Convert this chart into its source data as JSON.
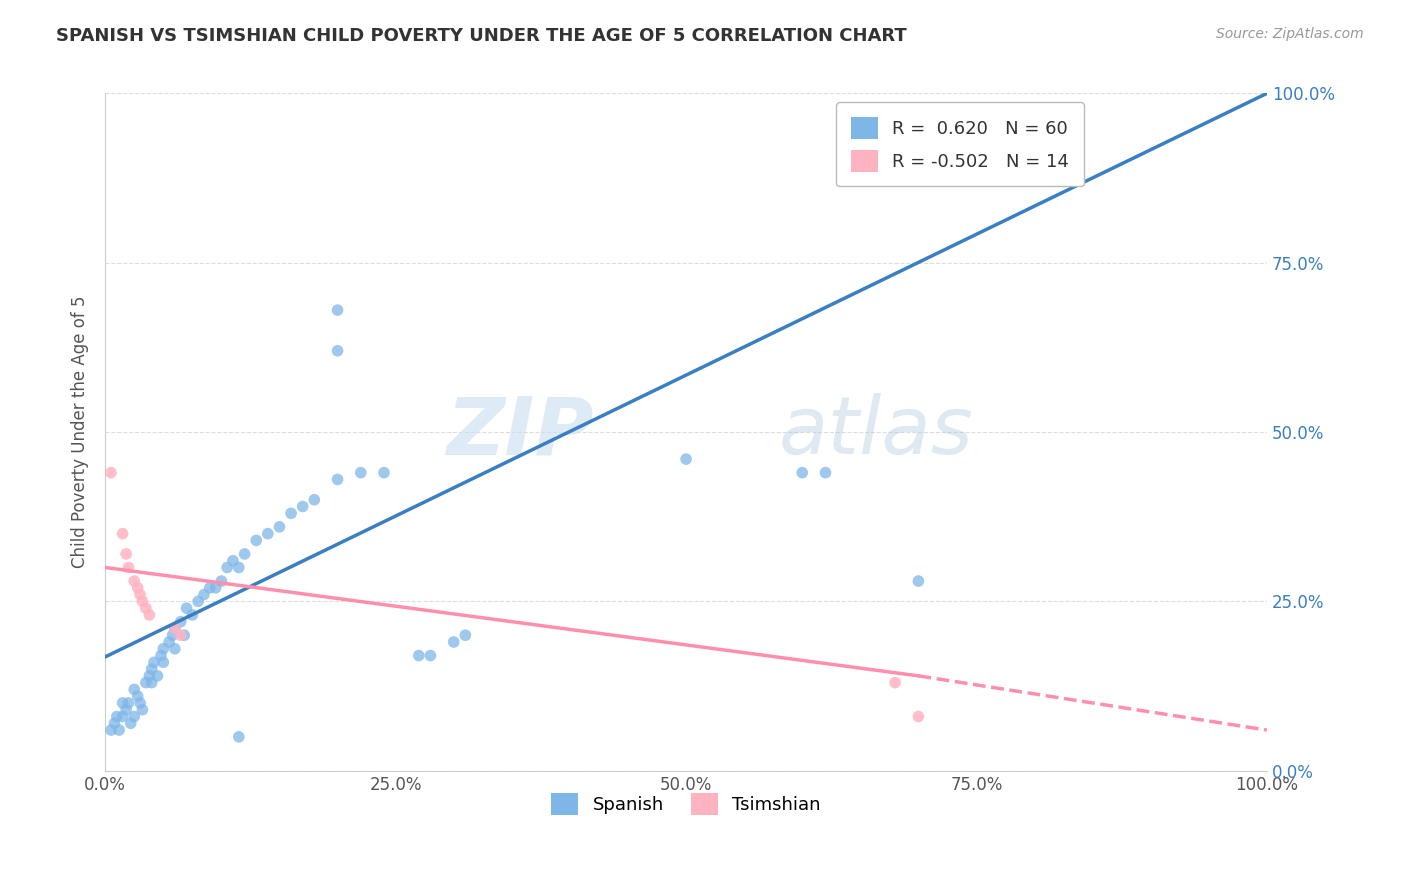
{
  "title": "SPANISH VS TSIMSHIAN CHILD POVERTY UNDER THE AGE OF 5 CORRELATION CHART",
  "source": "Source: ZipAtlas.com",
  "ylabel": "Child Poverty Under the Age of 5",
  "xlabel": "",
  "watermark_zip": "ZIP",
  "watermark_atlas": "atlas",
  "legend_r_spanish": " 0.620",
  "legend_n_spanish": "60",
  "legend_r_tsimshian": "-0.502",
  "legend_n_tsimshian": "14",
  "spanish_color": "#7EB6E8",
  "tsimshian_color": "#FFB3C1",
  "regression_spanish_color": "#3A7FC1",
  "regression_tsimshian_color": "#FF8FAB",
  "spanish_scatter": [
    [
      0.005,
      0.06
    ],
    [
      0.008,
      0.07
    ],
    [
      0.01,
      0.08
    ],
    [
      0.012,
      0.06
    ],
    [
      0.015,
      0.08
    ],
    [
      0.015,
      0.1
    ],
    [
      0.018,
      0.09
    ],
    [
      0.02,
      0.1
    ],
    [
      0.022,
      0.07
    ],
    [
      0.025,
      0.08
    ],
    [
      0.025,
      0.12
    ],
    [
      0.028,
      0.11
    ],
    [
      0.03,
      0.1
    ],
    [
      0.032,
      0.09
    ],
    [
      0.035,
      0.13
    ],
    [
      0.038,
      0.14
    ],
    [
      0.04,
      0.15
    ],
    [
      0.04,
      0.13
    ],
    [
      0.042,
      0.16
    ],
    [
      0.045,
      0.14
    ],
    [
      0.048,
      0.17
    ],
    [
      0.05,
      0.16
    ],
    [
      0.05,
      0.18
    ],
    [
      0.055,
      0.19
    ],
    [
      0.058,
      0.2
    ],
    [
      0.06,
      0.18
    ],
    [
      0.06,
      0.21
    ],
    [
      0.065,
      0.22
    ],
    [
      0.068,
      0.2
    ],
    [
      0.07,
      0.24
    ],
    [
      0.075,
      0.23
    ],
    [
      0.08,
      0.25
    ],
    [
      0.085,
      0.26
    ],
    [
      0.09,
      0.27
    ],
    [
      0.095,
      0.27
    ],
    [
      0.1,
      0.28
    ],
    [
      0.105,
      0.3
    ],
    [
      0.11,
      0.31
    ],
    [
      0.115,
      0.3
    ],
    [
      0.12,
      0.32
    ],
    [
      0.13,
      0.34
    ],
    [
      0.14,
      0.35
    ],
    [
      0.15,
      0.36
    ],
    [
      0.16,
      0.38
    ],
    [
      0.17,
      0.39
    ],
    [
      0.18,
      0.4
    ],
    [
      0.2,
      0.43
    ],
    [
      0.22,
      0.44
    ],
    [
      0.24,
      0.44
    ],
    [
      0.27,
      0.17
    ],
    [
      0.28,
      0.17
    ],
    [
      0.3,
      0.19
    ],
    [
      0.31,
      0.2
    ],
    [
      0.2,
      0.62
    ],
    [
      0.2,
      0.68
    ],
    [
      0.5,
      0.46
    ],
    [
      0.6,
      0.44
    ],
    [
      0.62,
      0.44
    ],
    [
      0.7,
      0.28
    ],
    [
      0.115,
      0.05
    ]
  ],
  "tsimshian_scatter": [
    [
      0.005,
      0.44
    ],
    [
      0.015,
      0.35
    ],
    [
      0.018,
      0.32
    ],
    [
      0.02,
      0.3
    ],
    [
      0.025,
      0.28
    ],
    [
      0.028,
      0.27
    ],
    [
      0.03,
      0.26
    ],
    [
      0.032,
      0.25
    ],
    [
      0.035,
      0.24
    ],
    [
      0.038,
      0.23
    ],
    [
      0.06,
      0.21
    ],
    [
      0.065,
      0.2
    ],
    [
      0.68,
      0.13
    ],
    [
      0.7,
      0.08
    ]
  ],
  "regression_spanish": [
    0.0,
    0.168,
    1.0,
    1.0
  ],
  "regression_tsimshian_solid": [
    0.0,
    0.3,
    0.7,
    0.14
  ],
  "regression_tsimshian_dashed": [
    0.7,
    0.14,
    1.0,
    0.06
  ],
  "xlim": [
    0.0,
    1.0
  ],
  "ylim": [
    0.0,
    1.0
  ],
  "xticks": [
    0.0,
    0.25,
    0.5,
    0.75,
    1.0
  ],
  "yticks": [
    0.0,
    0.25,
    0.5,
    0.75,
    1.0
  ],
  "xticklabels": [
    "0.0%",
    "25.0%",
    "50.0%",
    "75.0%",
    "100.0%"
  ],
  "yticklabels_right": [
    "0.0%",
    "25.0%",
    "50.0%",
    "75.0%",
    "100.0%"
  ],
  "background_color": "#FFFFFF",
  "grid_color": "#DDDDDD"
}
